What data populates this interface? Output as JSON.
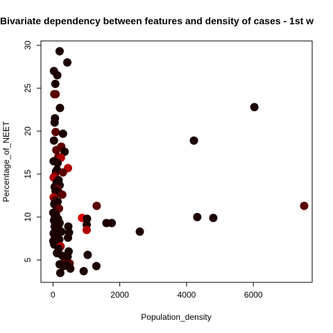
{
  "chart_data": {
    "type": "scatter",
    "title": "Bivariate dependency between features and density of cases -  1st w",
    "xlabel": "Population_density",
    "ylabel": "Percentage_of_NEET",
    "xlim": [
      -360,
      7760
    ],
    "ylim": [
      2.4,
      30.5
    ],
    "x_ticks": [
      0,
      2000,
      4000,
      6000
    ],
    "x_tick_labels": [
      "0",
      "2000",
      "4000",
      "6000"
    ],
    "y_ticks": [
      5,
      10,
      15,
      20,
      25,
      30
    ],
    "y_tick_labels": [
      "5",
      "10",
      "15",
      "20",
      "25",
      "30"
    ],
    "grid": false,
    "legend": "none",
    "colors": {
      "dark": "#1a0000",
      "mid": "#5a0000",
      "bright": "#b00000",
      "red": "#dd0000"
    },
    "points": [
      {
        "x": 200,
        "y": 29.3,
        "c": "dark"
      },
      {
        "x": 430,
        "y": 28.0,
        "c": "dark"
      },
      {
        "x": 30,
        "y": 27.0,
        "c": "dark"
      },
      {
        "x": 130,
        "y": 26.5,
        "c": "dark"
      },
      {
        "x": 70,
        "y": 25.5,
        "c": "dark"
      },
      {
        "x": 80,
        "y": 24.3,
        "c": "mid"
      },
      {
        "x": 40,
        "y": 24.3,
        "c": "mid"
      },
      {
        "x": 210,
        "y": 22.7,
        "c": "dark"
      },
      {
        "x": 60,
        "y": 21.5,
        "c": "dark"
      },
      {
        "x": 50,
        "y": 21.0,
        "c": "dark"
      },
      {
        "x": 80,
        "y": 19.9,
        "c": "mid"
      },
      {
        "x": 300,
        "y": 19.7,
        "c": "dark"
      },
      {
        "x": 30,
        "y": 18.9,
        "c": "dark"
      },
      {
        "x": 250,
        "y": 18.2,
        "c": "mid"
      },
      {
        "x": 100,
        "y": 17.8,
        "c": "mid"
      },
      {
        "x": 350,
        "y": 17.6,
        "c": "dark"
      },
      {
        "x": 160,
        "y": 17.0,
        "c": "mid"
      },
      {
        "x": 240,
        "y": 16.9,
        "c": "bright"
      },
      {
        "x": 20,
        "y": 16.5,
        "c": "dark"
      },
      {
        "x": 140,
        "y": 16.3,
        "c": "dark"
      },
      {
        "x": 450,
        "y": 15.7,
        "c": "bright"
      },
      {
        "x": 120,
        "y": 15.5,
        "c": "dark"
      },
      {
        "x": 90,
        "y": 15.3,
        "c": "dark"
      },
      {
        "x": 300,
        "y": 15.2,
        "c": "mid"
      },
      {
        "x": 60,
        "y": 14.8,
        "c": "mid"
      },
      {
        "x": 20,
        "y": 14.6,
        "c": "bright"
      },
      {
        "x": 170,
        "y": 14.3,
        "c": "dark"
      },
      {
        "x": 110,
        "y": 14.0,
        "c": "dark"
      },
      {
        "x": 200,
        "y": 13.7,
        "c": "dark"
      },
      {
        "x": 50,
        "y": 13.5,
        "c": "dark"
      },
      {
        "x": 130,
        "y": 13.3,
        "c": "mid"
      },
      {
        "x": 80,
        "y": 13.0,
        "c": "dark"
      },
      {
        "x": 190,
        "y": 12.8,
        "c": "dark"
      },
      {
        "x": 280,
        "y": 12.6,
        "c": "mid"
      },
      {
        "x": 20,
        "y": 12.3,
        "c": "bright"
      },
      {
        "x": 60,
        "y": 12.0,
        "c": "mid"
      },
      {
        "x": 140,
        "y": 11.8,
        "c": "dark"
      },
      {
        "x": 40,
        "y": 11.5,
        "c": "dark"
      },
      {
        "x": 100,
        "y": 11.3,
        "c": "dark"
      },
      {
        "x": 180,
        "y": 11.0,
        "c": "mid"
      },
      {
        "x": 10,
        "y": 10.5,
        "c": "dark"
      },
      {
        "x": 90,
        "y": 10.3,
        "c": "dark"
      },
      {
        "x": 60,
        "y": 10.0,
        "c": "dark"
      },
      {
        "x": 150,
        "y": 9.8,
        "c": "dark"
      },
      {
        "x": 30,
        "y": 9.6,
        "c": "dark"
      },
      {
        "x": 200,
        "y": 9.3,
        "c": "dark"
      },
      {
        "x": 110,
        "y": 9.1,
        "c": "dark"
      },
      {
        "x": 50,
        "y": 8.9,
        "c": "dark"
      },
      {
        "x": 160,
        "y": 8.7,
        "c": "dark"
      },
      {
        "x": 80,
        "y": 8.5,
        "c": "dark"
      },
      {
        "x": 250,
        "y": 8.3,
        "c": "dark"
      },
      {
        "x": 20,
        "y": 8.1,
        "c": "dark"
      },
      {
        "x": 130,
        "y": 7.9,
        "c": "dark"
      },
      {
        "x": 60,
        "y": 7.6,
        "c": "dark"
      },
      {
        "x": 190,
        "y": 7.4,
        "c": "dark"
      },
      {
        "x": 10,
        "y": 7.2,
        "c": "dark"
      },
      {
        "x": 100,
        "y": 7.0,
        "c": "dark"
      },
      {
        "x": 40,
        "y": 6.8,
        "c": "dark"
      },
      {
        "x": 230,
        "y": 6.6,
        "c": "bright"
      },
      {
        "x": 170,
        "y": 6.3,
        "c": "dark"
      },
      {
        "x": 120,
        "y": 5.8,
        "c": "dark"
      },
      {
        "x": 280,
        "y": 5.5,
        "c": "dark"
      },
      {
        "x": 350,
        "y": 5.2,
        "c": "dark"
      },
      {
        "x": 400,
        "y": 4.8,
        "c": "mid"
      },
      {
        "x": 200,
        "y": 4.5,
        "c": "dark"
      },
      {
        "x": 320,
        "y": 4.3,
        "c": "dark"
      },
      {
        "x": 220,
        "y": 3.5,
        "c": "dark"
      },
      {
        "x": 460,
        "y": 8.9,
        "c": "dark"
      },
      {
        "x": 480,
        "y": 8.2,
        "c": "dark"
      },
      {
        "x": 450,
        "y": 7.6,
        "c": "dark"
      },
      {
        "x": 470,
        "y": 6.0,
        "c": "dark"
      },
      {
        "x": 440,
        "y": 5.4,
        "c": "dark"
      },
      {
        "x": 500,
        "y": 4.6,
        "c": "mid"
      },
      {
        "x": 420,
        "y": 4.4,
        "c": "dark"
      },
      {
        "x": 520,
        "y": 4.0,
        "c": "dark"
      },
      {
        "x": 870,
        "y": 9.9,
        "c": "red"
      },
      {
        "x": 1020,
        "y": 9.8,
        "c": "dark"
      },
      {
        "x": 1010,
        "y": 9.1,
        "c": "dark"
      },
      {
        "x": 1010,
        "y": 8.5,
        "c": "bright"
      },
      {
        "x": 1040,
        "y": 5.6,
        "c": "dark"
      },
      {
        "x": 920,
        "y": 3.7,
        "c": "dark"
      },
      {
        "x": 1310,
        "y": 11.3,
        "c": "mid"
      },
      {
        "x": 1300,
        "y": 4.3,
        "c": "dark"
      },
      {
        "x": 1600,
        "y": 9.3,
        "c": "dark"
      },
      {
        "x": 1760,
        "y": 9.3,
        "c": "dark"
      },
      {
        "x": 2600,
        "y": 8.3,
        "c": "dark"
      },
      {
        "x": 4220,
        "y": 18.9,
        "c": "dark"
      },
      {
        "x": 4320,
        "y": 10.0,
        "c": "dark"
      },
      {
        "x": 4800,
        "y": 9.9,
        "c": "dark"
      },
      {
        "x": 6030,
        "y": 22.8,
        "c": "dark"
      },
      {
        "x": 7520,
        "y": 11.3,
        "c": "mid"
      }
    ]
  }
}
